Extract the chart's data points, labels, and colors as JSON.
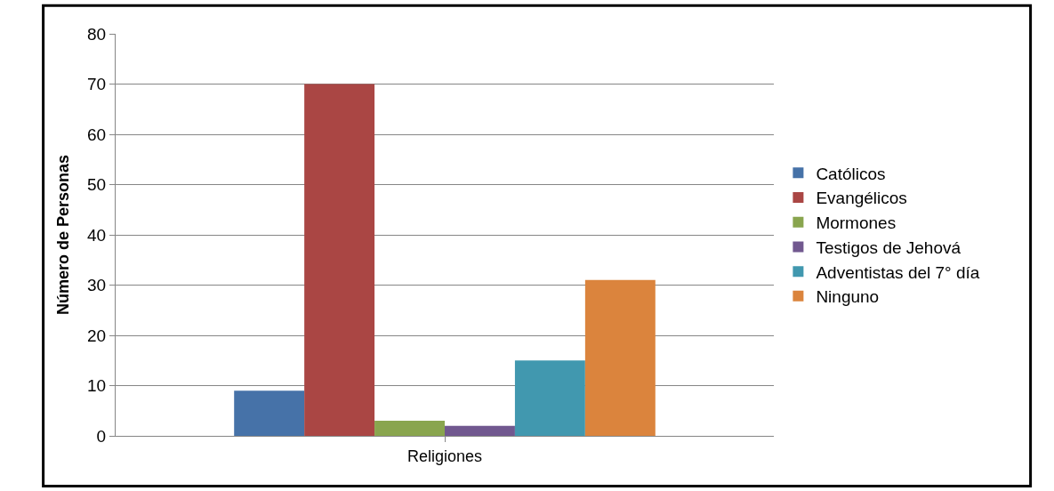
{
  "chart_data": {
    "type": "bar",
    "ylabel": "Número de Personas",
    "categories": [
      "Religiones"
    ],
    "series": [
      {
        "name": "Católicos",
        "color": "#4672a8",
        "values": [
          9
        ]
      },
      {
        "name": "Evangélicos",
        "color": "#aa4644",
        "values": [
          70
        ]
      },
      {
        "name": "Mormones",
        "color": "#89a54e",
        "values": [
          3
        ]
      },
      {
        "name": "Testigos de Jehová",
        "color": "#71588f",
        "values": [
          2
        ]
      },
      {
        "name": "Adventistas del 7° día",
        "color": "#4198af",
        "values": [
          15
        ]
      },
      {
        "name": "Ninguno",
        "color": "#db843d",
        "values": [
          31
        ]
      }
    ],
    "ylim": [
      0,
      80
    ],
    "yticks": [
      0,
      10,
      20,
      30,
      40,
      50,
      60,
      70,
      80
    ],
    "grid": "y",
    "legend": "right"
  }
}
